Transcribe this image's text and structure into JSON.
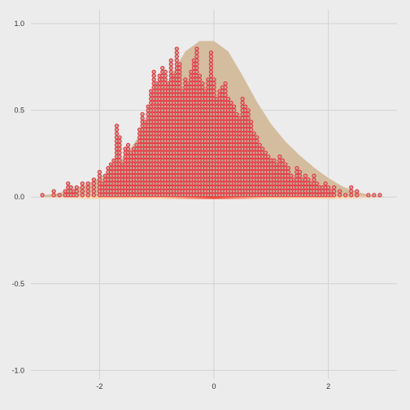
{
  "chart_data": {
    "type": "dotplot",
    "title": "",
    "xlabel": "",
    "ylabel": "",
    "xlim": [
      -3.2,
      3.2
    ],
    "ylim": [
      -1.05,
      1.08
    ],
    "grid": true,
    "x_ticks": [
      {
        "value": -2,
        "label": "-2"
      },
      {
        "value": 0,
        "label": "0"
      },
      {
        "value": 2,
        "label": "2"
      }
    ],
    "y_ticks": [
      {
        "value": 1.0,
        "label": "1.0"
      },
      {
        "value": 0.5,
        "label": "0.5"
      },
      {
        "value": 0.0,
        "label": "0.0"
      },
      {
        "value": -0.5,
        "label": "-0.5"
      },
      {
        "value": -1.0,
        "label": "-1.0"
      }
    ],
    "density": {
      "x": [
        -3.0,
        -2.75,
        -2.5,
        -2.25,
        -2.0,
        -1.75,
        -1.5,
        -1.25,
        -1.0,
        -0.75,
        -0.5,
        -0.25,
        0.0,
        0.25,
        0.5,
        0.75,
        1.0,
        1.25,
        1.5,
        1.75,
        2.0,
        2.25,
        2.5,
        2.75,
        3.0
      ],
      "y": [
        0.01,
        0.02,
        0.04,
        0.07,
        0.11,
        0.17,
        0.26,
        0.38,
        0.52,
        0.7,
        0.84,
        0.9,
        0.9,
        0.84,
        0.7,
        0.55,
        0.42,
        0.32,
        0.24,
        0.17,
        0.11,
        0.06,
        0.03,
        0.01,
        0.0
      ]
    },
    "dot_stacks": {
      "dot_spacing_y": 0.0222,
      "x": [
        -3.0,
        -2.8,
        -2.7,
        -2.6,
        -2.55,
        -2.5,
        -2.45,
        -2.4,
        -2.3,
        -2.2,
        -2.1,
        -2.0,
        -1.95,
        -1.9,
        -1.85,
        -1.8,
        -1.75,
        -1.7,
        -1.65,
        -1.6,
        -1.55,
        -1.5,
        -1.45,
        -1.4,
        -1.35,
        -1.3,
        -1.25,
        -1.2,
        -1.15,
        -1.1,
        -1.05,
        -1.0,
        -0.95,
        -0.9,
        -0.85,
        -0.8,
        -0.75,
        -0.7,
        -0.65,
        -0.6,
        -0.55,
        -0.5,
        -0.45,
        -0.4,
        -0.35,
        -0.3,
        -0.25,
        -0.2,
        -0.15,
        -0.1,
        -0.05,
        0.0,
        0.05,
        0.1,
        0.15,
        0.2,
        0.25,
        0.3,
        0.35,
        0.4,
        0.45,
        0.5,
        0.55,
        0.6,
        0.65,
        0.7,
        0.75,
        0.8,
        0.85,
        0.9,
        0.95,
        1.0,
        1.05,
        1.1,
        1.15,
        1.2,
        1.25,
        1.3,
        1.35,
        1.4,
        1.45,
        1.5,
        1.55,
        1.6,
        1.65,
        1.7,
        1.75,
        1.8,
        1.85,
        1.9,
        1.95,
        2.0,
        2.05,
        2.1,
        2.2,
        2.3,
        2.4,
        2.5,
        2.7,
        2.8,
        2.9
      ],
      "counts": [
        1,
        2,
        1,
        2,
        4,
        3,
        2,
        3,
        4,
        4,
        5,
        7,
        4,
        6,
        8,
        9,
        10,
        19,
        16,
        9,
        13,
        14,
        12,
        13,
        14,
        18,
        22,
        20,
        24,
        28,
        33,
        30,
        32,
        34,
        33,
        30,
        36,
        32,
        39,
        35,
        28,
        31,
        30,
        33,
        36,
        39,
        32,
        30,
        28,
        31,
        38,
        31,
        26,
        28,
        29,
        30,
        26,
        25,
        24,
        22,
        21,
        26,
        24,
        23,
        20,
        17,
        16,
        14,
        13,
        12,
        11,
        10,
        10,
        9,
        11,
        10,
        9,
        8,
        6,
        5,
        8,
        7,
        5,
        6,
        5,
        4,
        6,
        4,
        3,
        3,
        4,
        3,
        2,
        3,
        2,
        1,
        3,
        2,
        1,
        1,
        1
      ]
    },
    "colors": {
      "density_fill": "#d4bd9e",
      "dot_stroke": "#e8313f",
      "dot_fill": "#c4a996",
      "rug_light": "#ffd6a8",
      "rug_dark": "#ef4b38",
      "grid": "#d2d2d2",
      "background": "#ececec"
    }
  }
}
